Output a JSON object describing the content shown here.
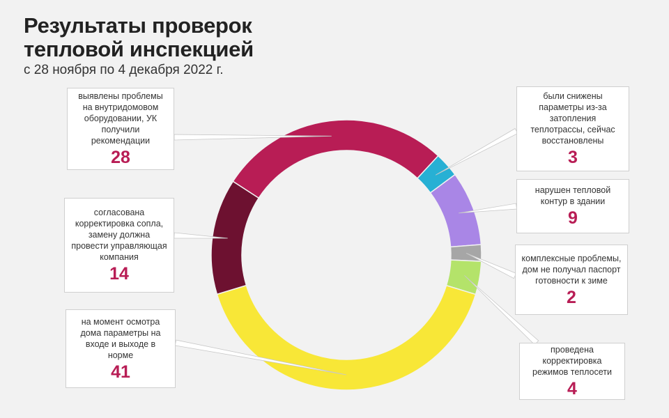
{
  "header": {
    "title": "Результаты проверок\nтепловой инспекцией",
    "subtitle": "с 28 ноября по 4 декабря 2022 г."
  },
  "chart_data": {
    "type": "pie",
    "variant": "donut",
    "title": "Результаты проверок тепловой инспекцией",
    "subtitle": "с 28 ноября по 4 декабря 2022 г.",
    "series": [
      {
        "label": "выявлены проблемы на внутридомовом оборудовании, УК получили рекомендации",
        "value": 28,
        "color": "#b81d55"
      },
      {
        "label": "были снижены параметры из-за затопления теплотрассы, сейчас восстановлены",
        "value": 3,
        "color": "#27b0d4"
      },
      {
        "label": "нарушен тепловой контур в здании",
        "value": 9,
        "color": "#a986e6"
      },
      {
        "label": "комплексные проблемы, дом не получал паспорт готовности к зиме",
        "value": 2,
        "color": "#a6a6a6"
      },
      {
        "label": "проведена корректировка режимов теплосети",
        "value": 4,
        "color": "#b4e36a"
      },
      {
        "label": "на момент осмотра дома параметры на входе и выходе в норме",
        "value": 41,
        "color": "#f8e737"
      },
      {
        "label": "согласована корректировка сопла, замену должна провести управляющая компания",
        "value": 14,
        "color": "#6d1130"
      }
    ]
  }
}
